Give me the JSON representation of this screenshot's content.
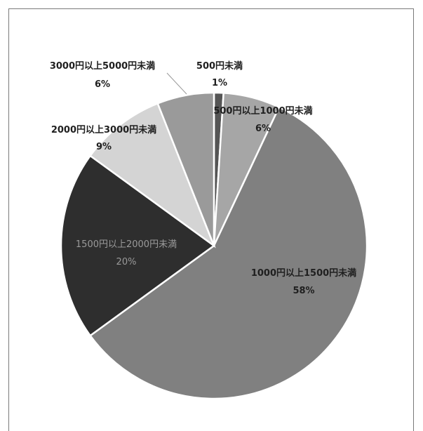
{
  "chart_data": {
    "type": "pie",
    "title": "",
    "slices": [
      {
        "name": "500円未満",
        "pct_label": "1%",
        "value": 1,
        "color": "#555555"
      },
      {
        "name": "500円以上1000円未満",
        "pct_label": "6%",
        "value": 6,
        "color": "#a6a6a6"
      },
      {
        "name": "1000円以上1500円未満",
        "pct_label": "58%",
        "value": 58,
        "color": "#808080"
      },
      {
        "name": "1500円以上2000円未満",
        "pct_label": "20%",
        "value": 20,
        "color": "#2e2e2e"
      },
      {
        "name": "2000円以上3000円未満",
        "pct_label": "9%",
        "value": 9,
        "color": "#d4d4d4"
      },
      {
        "name": "3000円以上5000円未満",
        "pct_label": "6%",
        "value": 6,
        "color": "#9a9a9a"
      }
    ]
  }
}
